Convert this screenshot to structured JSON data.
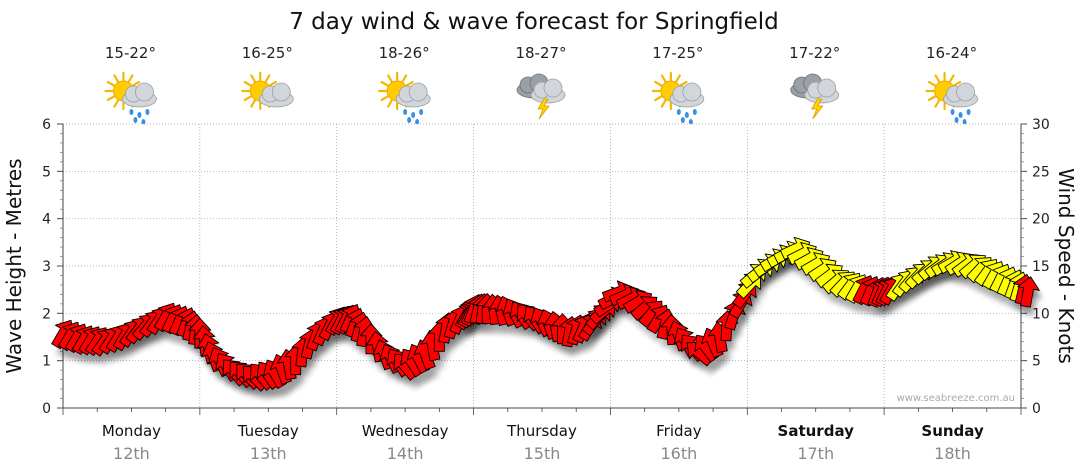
{
  "chart_data": {
    "type": "line",
    "title": "7 day wind & wave forecast for Springfield",
    "ylabel_left": "Wave Height - Metres",
    "ylabel_right": "Wind Speed - Knots",
    "ylim_left": [
      0,
      6
    ],
    "ylim_right": [
      0,
      30
    ],
    "yticks_left": [
      "0",
      "1",
      "2",
      "3",
      "4",
      "5",
      "6"
    ],
    "yticks_right": [
      "0",
      "5",
      "10",
      "15",
      "20",
      "25",
      "30"
    ],
    "grid": true,
    "credit": "www.seabreeze.com.au",
    "days": [
      {
        "name": "Monday",
        "date": "12th",
        "temp": "15-22°",
        "icon": "sun-cloud-rain-icon",
        "bold": false
      },
      {
        "name": "Tuesday",
        "date": "13th",
        "temp": "16-25°",
        "icon": "sun-cloud-icon",
        "bold": false
      },
      {
        "name": "Wednesday",
        "date": "14th",
        "temp": "18-26°",
        "icon": "sun-cloud-rain-icon",
        "bold": false
      },
      {
        "name": "Thursday",
        "date": "15th",
        "temp": "18-27°",
        "icon": "storm-cloud-icon",
        "bold": false
      },
      {
        "name": "Friday",
        "date": "16th",
        "temp": "17-25°",
        "icon": "sun-cloud-rain-icon",
        "bold": false
      },
      {
        "name": "Saturday",
        "date": "17th",
        "temp": "17-22°",
        "icon": "storm-cloud-icon",
        "bold": true
      },
      {
        "name": "Sunday",
        "date": "18th",
        "temp": "16-24°",
        "icon": "sun-cloud-rain-icon",
        "bold": true
      }
    ],
    "series": [
      {
        "name": "Wind",
        "unit": "knots",
        "x_days": [
          0.0,
          0.15,
          0.3,
          0.45,
          0.6,
          0.75,
          0.9,
          1.0,
          1.1,
          1.25,
          1.4,
          1.55,
          1.7,
          1.85,
          2.0,
          2.1,
          2.2,
          2.35,
          2.5,
          2.65,
          2.8,
          2.95,
          3.0,
          3.1,
          3.25,
          3.4,
          3.55,
          3.7,
          3.85,
          3.95,
          4.05,
          4.2,
          4.35,
          4.5,
          4.65,
          4.8,
          4.95,
          5.05,
          5.2,
          5.35,
          5.5,
          5.65,
          5.8,
          5.95,
          6.05,
          6.2,
          6.35,
          6.5,
          6.65,
          6.8,
          6.95,
          7.05
        ],
        "values": [
          7.8,
          7.2,
          7.0,
          7.6,
          8.6,
          9.6,
          9.0,
          7.8,
          5.4,
          3.8,
          3.2,
          3.6,
          5.0,
          7.6,
          9.2,
          9.4,
          8.0,
          5.6,
          4.4,
          5.6,
          8.4,
          9.8,
          10.4,
          10.4,
          10.2,
          9.6,
          8.8,
          8.0,
          8.6,
          10.2,
          12.2,
          11.2,
          9.4,
          7.6,
          5.8,
          7.4,
          11.0,
          14.0,
          15.6,
          16.8,
          15.2,
          13.4,
          12.6,
          12.2,
          12.4,
          13.6,
          14.8,
          15.4,
          15.0,
          14.0,
          13.0,
          12.2
        ],
        "direction_deg": [
          300,
          300,
          305,
          300,
          310,
          300,
          290,
          270,
          250,
          230,
          225,
          240,
          270,
          290,
          300,
          295,
          280,
          250,
          230,
          250,
          280,
          300,
          290,
          270,
          250,
          230,
          250,
          280,
          300,
          320,
          340,
          330,
          300,
          250,
          220,
          260,
          300,
          320,
          330,
          335,
          330,
          320,
          300,
          290,
          300,
          310,
          320,
          330,
          320,
          300,
          290,
          280
        ],
        "colors": [
          "#ff0000",
          "#ffff00"
        ],
        "color_threshold": 12.5
      }
    ]
  }
}
